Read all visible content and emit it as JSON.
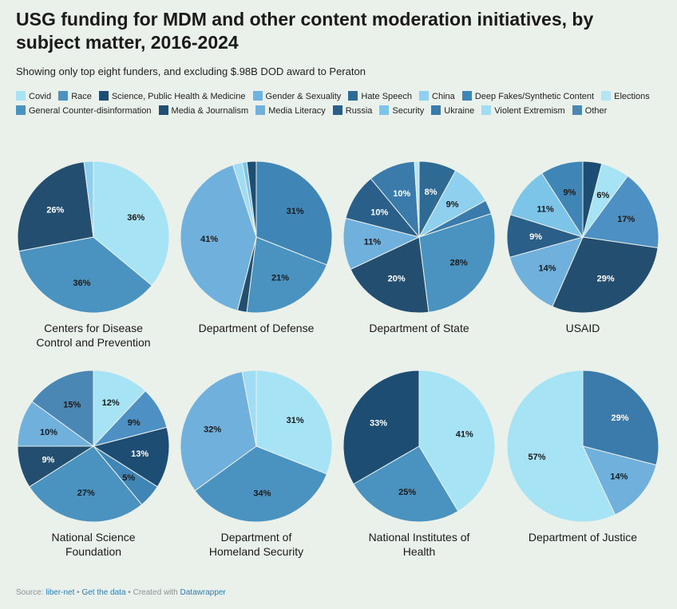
{
  "header": {
    "title": "USG funding for MDM and other content moderation initiatives, by subject matter, 2016-2024",
    "subtitle": "Showing only top eight funders, and excluding $.98B DOD award to Peraton"
  },
  "legend": [
    {
      "label": "Covid",
      "color": "#a6e3f5"
    },
    {
      "label": "Race",
      "color": "#4d90c4"
    },
    {
      "label": "Science, Public Health & Medicine",
      "color": "#1e4d74"
    },
    {
      "label": "Gender & Sexuality",
      "color": "#6cb3e0"
    },
    {
      "label": "Hate Speech",
      "color": "#2e6a94"
    },
    {
      "label": "China",
      "color": "#8fd0ef"
    },
    {
      "label": "Deep Fakes/Synthetic Content",
      "color": "#3f86b6"
    },
    {
      "label": "Elections",
      "color": "#b5e4f5"
    },
    {
      "label": "General Counter-disinformation",
      "color": "#4a93c1"
    },
    {
      "label": "Media & Journalism",
      "color": "#234e70"
    },
    {
      "label": "Media Literacy",
      "color": "#6fb0dc"
    },
    {
      "label": "Russia",
      "color": "#2a5f8a"
    },
    {
      "label": "Security",
      "color": "#7cc4e8"
    },
    {
      "label": "Ukraine",
      "color": "#3b7bab"
    },
    {
      "label": "Violent Extremism",
      "color": "#a0dcf3"
    },
    {
      "label": "Other",
      "color": "#4a87b5"
    }
  ],
  "chart_data": [
    {
      "type": "pie",
      "title": "Centers for Disease Control and Prevention",
      "title_lines": [
        "Centers for Disease",
        "Control and Prevention"
      ],
      "slices": [
        {
          "label": "Covid",
          "value": 36,
          "show": "36%",
          "color": "#a6e3f5"
        },
        {
          "label": "General Counter-disinformation",
          "value": 36,
          "show": "36%",
          "color": "#4a93c1"
        },
        {
          "label": "Media & Journalism",
          "value": 26,
          "show": "26%",
          "color": "#234e70"
        },
        {
          "label": "Other",
          "value": 2,
          "show": "",
          "color": "#8fd0ef"
        }
      ]
    },
    {
      "type": "pie",
      "title": "Department of Defense",
      "title_lines": [
        "Department of Defense"
      ],
      "slices": [
        {
          "label": "Deep Fakes/Synthetic Content",
          "value": 31,
          "show": "31%",
          "color": "#3f86b6"
        },
        {
          "label": "General Counter-disinformation",
          "value": 21,
          "show": "21%",
          "color": "#4a93c1"
        },
        {
          "label": "Media & Journalism",
          "value": 2,
          "show": "",
          "color": "#234e70"
        },
        {
          "label": "Media Literacy",
          "value": 41,
          "show": "41%",
          "color": "#6fb0dc"
        },
        {
          "label": "Violent Extremism",
          "value": 2,
          "show": "",
          "color": "#a0dcf3"
        },
        {
          "label": "Security",
          "value": 1,
          "show": "",
          "color": "#7cc4e8"
        },
        {
          "label": "Science, Public Health & Medicine",
          "value": 2,
          "show": "",
          "color": "#1e4d74"
        }
      ]
    },
    {
      "type": "pie",
      "title": "Department of State",
      "title_lines": [
        "Department of State"
      ],
      "slices": [
        {
          "label": "Hate Speech",
          "value": 8,
          "show": "8%",
          "color": "#2e6a94"
        },
        {
          "label": "China",
          "value": 9,
          "show": "9%",
          "color": "#8fd0ef"
        },
        {
          "label": "Other",
          "value": 3,
          "show": "",
          "color": "#3b7bab"
        },
        {
          "label": "General Counter-disinformation",
          "value": 28,
          "show": "28%",
          "color": "#4a93c1"
        },
        {
          "label": "Media & Journalism",
          "value": 20,
          "show": "20%",
          "color": "#234e70"
        },
        {
          "label": "Media Literacy",
          "value": 11,
          "show": "11%",
          "color": "#6fb0dc"
        },
        {
          "label": "Russia",
          "value": 10,
          "show": "10%",
          "color": "#2a5f8a"
        },
        {
          "label": "Ukraine",
          "value": 10,
          "show": "10%",
          "color": "#3b7bab"
        },
        {
          "label": "Elections",
          "value": 1,
          "show": "",
          "color": "#b5e4f5"
        }
      ]
    },
    {
      "type": "pie",
      "title": "USAID",
      "title_lines": [
        "USAID"
      ],
      "slices": [
        {
          "label": "Science, Public Health & Medicine",
          "value": 4,
          "show": "",
          "color": "#1e4d74"
        },
        {
          "label": "Covid",
          "value": 6,
          "show": "6%",
          "color": "#a6e3f5"
        },
        {
          "label": "Gender & Sexuality",
          "value": 17,
          "show": "17%",
          "color": "#4d90c4"
        },
        {
          "label": "Media & Journalism",
          "value": 29,
          "show": "29%",
          "color": "#234e70"
        },
        {
          "label": "Media Literacy",
          "value": 14,
          "show": "14%",
          "color": "#6fb0dc"
        },
        {
          "label": "Russia",
          "value": 9,
          "show": "9%",
          "color": "#2a5f8a"
        },
        {
          "label": "Security",
          "value": 11,
          "show": "11%",
          "color": "#7cc4e8"
        },
        {
          "label": "Deep Fakes/Synthetic Content",
          "value": 9,
          "show": "9%",
          "color": "#3f86b6"
        }
      ]
    },
    {
      "type": "pie",
      "title": "National Science Foundation",
      "title_lines": [
        "National Science",
        "Foundation"
      ],
      "slices": [
        {
          "label": "Covid",
          "value": 12,
          "show": "12%",
          "color": "#a6e3f5"
        },
        {
          "label": "Race",
          "value": 9,
          "show": "9%",
          "color": "#4d90c4"
        },
        {
          "label": "Science, Public Health & Medicine",
          "value": 13,
          "show": "13%",
          "color": "#1e4d74"
        },
        {
          "label": "Deep Fakes/Synthetic Content",
          "value": 5,
          "show": "5%",
          "color": "#3f86b6"
        },
        {
          "label": "General Counter-disinformation",
          "value": 27,
          "show": "27%",
          "color": "#4a93c1"
        },
        {
          "label": "Media & Journalism",
          "value": 9,
          "show": "9%",
          "color": "#234e70"
        },
        {
          "label": "Media Literacy",
          "value": 10,
          "show": "10%",
          "color": "#6fb0dc"
        },
        {
          "label": "Other",
          "value": 15,
          "show": "15%",
          "color": "#4a87b5"
        }
      ]
    },
    {
      "type": "pie",
      "title": "Department of Homeland Security",
      "title_lines": [
        "Department of",
        "Homeland Security"
      ],
      "slices": [
        {
          "label": "Elections",
          "value": 31,
          "show": "31%",
          "color": "#a6e3f5"
        },
        {
          "label": "General Counter-disinformation",
          "value": 34,
          "show": "34%",
          "color": "#4a93c1"
        },
        {
          "label": "Media Literacy",
          "value": 32,
          "show": "32%",
          "color": "#6fb0dc"
        },
        {
          "label": "Violent Extremism",
          "value": 3,
          "show": "",
          "color": "#a0dcf3"
        }
      ]
    },
    {
      "type": "pie",
      "title": "National Institutes of Health",
      "title_lines": [
        "National Institutes of",
        "Health"
      ],
      "slices": [
        {
          "label": "Covid",
          "value": 41,
          "show": "41%",
          "color": "#a6e3f5"
        },
        {
          "label": "General Counter-disinformation",
          "value": 25,
          "show": "25%",
          "color": "#4a93c1"
        },
        {
          "label": "Science, Public Health & Medicine",
          "value": 33,
          "show": "33%",
          "color": "#1e4d74"
        }
      ]
    },
    {
      "type": "pie",
      "title": "Department of Justice",
      "title_lines": [
        "Department of Justice"
      ],
      "slices": [
        {
          "label": "Hate Speech",
          "value": 29,
          "show": "29%",
          "color": "#3b7bab"
        },
        {
          "label": "Media Literacy",
          "value": 14,
          "show": "14%",
          "color": "#6fb0dc"
        },
        {
          "label": "Violent Extremism",
          "value": 57,
          "show": "57%",
          "color": "#a6e3f5"
        }
      ]
    }
  ],
  "footer": {
    "source_label": "Source:",
    "source_link": "liber-net",
    "sep1": "•",
    "get_data": "Get the data",
    "sep2": "•",
    "created_with": "Created with",
    "tool": "Datawrapper"
  }
}
